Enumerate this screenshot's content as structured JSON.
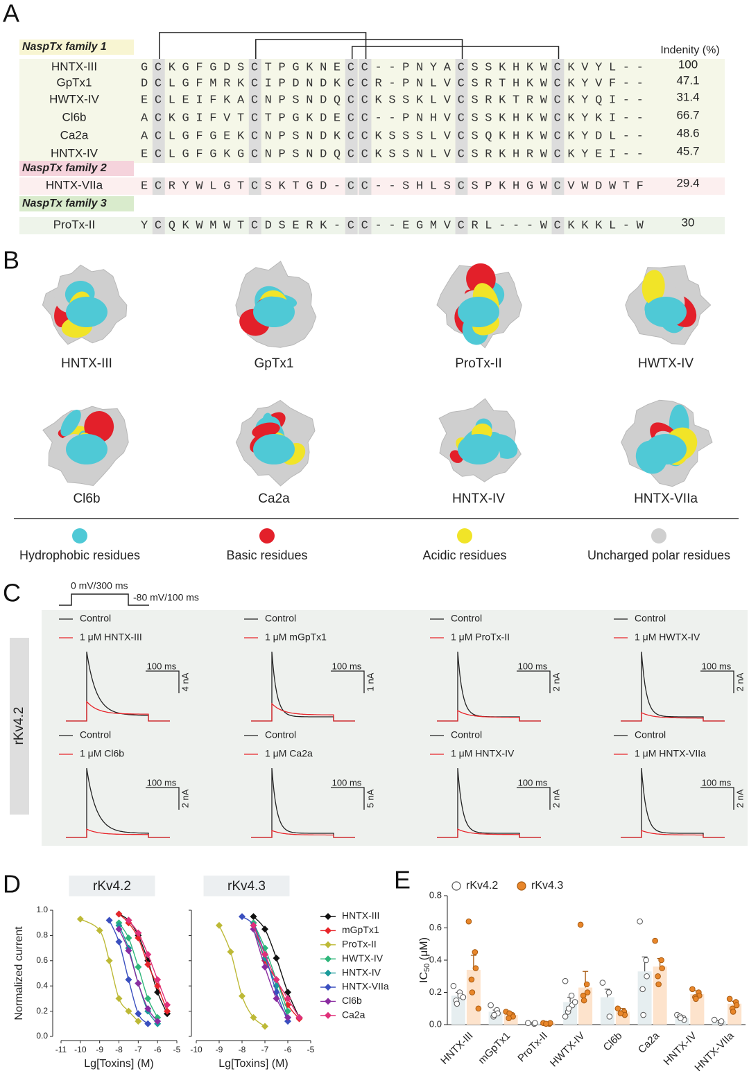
{
  "panel_a": {
    "label": "A",
    "identity_header": "Indenity (%)",
    "families": [
      {
        "name": "NaspTx family 1",
        "rows": [
          {
            "name": "HNTX-III",
            "sequence": "GCKGFGDSCTPGKNECC--PNYACSSKHKWCKVYL--",
            "identity": 100
          },
          {
            "name": "GpTx1",
            "sequence": "DCLGFMRKCIPDNDKCCR-PNLVCSRTHKWCKYVF--",
            "identity": 47.1
          },
          {
            "name": "HWTX-IV",
            "sequence": "ECLEIFKACNPSNDQCCKSSKLVCSRKTRWCKYQI--",
            "identity": 31.4
          },
          {
            "name": "Cl6b",
            "sequence": "ACKGIFVTCTPGKDECC--PNHVCSSKHKWCKYKI--",
            "identity": 66.7
          },
          {
            "name": "Ca2a",
            "sequence": "ACLGFGEKCNPSNDKCCKSSSLVCSQKHKWCKYDL--",
            "identity": 48.6
          },
          {
            "name": "HNTX-IV",
            "sequence": "ECLGFGKGCNPSNDQCCKSSNLVCSRKHRWCKYEI--",
            "identity": 45.7
          }
        ]
      },
      {
        "name": "NaspTx family 2",
        "rows": [
          {
            "name": "HNTX-VIIa",
            "sequence": "ECRYWLGTCSKTGD-CC--SHLSCSPKHGWCVWDWTF",
            "identity": 29.4
          }
        ]
      },
      {
        "name": "NaspTx family 3",
        "rows": [
          {
            "name": "ProTx-II",
            "sequence": "YCQKWMWTCDSERK-CC--EGMVCRL---WCKKKL-W",
            "identity": 30.0
          }
        ]
      }
    ]
  },
  "panel_b": {
    "label": "B",
    "structures": [
      "HNTX-III",
      "GpTx1",
      "ProTx-II",
      "HWTX-IV",
      "Cl6b",
      "Ca2a",
      "HNTX-IV",
      "HNTX-VIIa"
    ],
    "legend": [
      {
        "name": "Hydrophobic residues",
        "color": "#4fc9d6"
      },
      {
        "name": "Basic residues",
        "color": "#e3202a"
      },
      {
        "name": "Acidic residues",
        "color": "#f1e428"
      },
      {
        "name": "Uncharged polar residues",
        "color": "#cfcfcf"
      }
    ]
  },
  "panel_c": {
    "label": "C",
    "protocol": [
      "0 mV/300 ms",
      "-80 mV/100 ms"
    ],
    "channel": "rKv4.2",
    "traces": [
      {
        "control": "Control",
        "treatment": "1 μM HNTX-III",
        "time_scale": "100 ms",
        "current_scale": "4 nA"
      },
      {
        "control": "Control",
        "treatment": "1 μM mGpTx1",
        "time_scale": "100 ms",
        "current_scale": "1 nA"
      },
      {
        "control": "Control",
        "treatment": "1 μM ProTx-II",
        "time_scale": "100 ms",
        "current_scale": "2 nA"
      },
      {
        "control": "Control",
        "treatment": "1 μM HWTX-IV",
        "time_scale": "100 ms",
        "current_scale": "2 nA"
      },
      {
        "control": "Control",
        "treatment": "1 μM Cl6b",
        "time_scale": "100 ms",
        "current_scale": "2 nA"
      },
      {
        "control": "Control",
        "treatment": "1 μM Ca2a",
        "time_scale": "100 ms",
        "current_scale": "5 nA"
      },
      {
        "control": "Control",
        "treatment": "1 μM HNTX-IV",
        "time_scale": "100 ms",
        "current_scale": "2 nA"
      },
      {
        "control": "Control",
        "treatment": "1 μM HNTX-VIIa",
        "time_scale": "100 ms",
        "current_scale": "2 nA"
      }
    ]
  },
  "panel_d_label": "D",
  "panel_e_label": "E",
  "chart_data": [
    {
      "type": "line",
      "title": "rKv4.2",
      "xlabel": "Lg[Toxins] (M)",
      "ylabel": "Normalized current",
      "xlim": [
        -11,
        -5
      ],
      "xticks": [
        -11,
        -10,
        -9,
        -8,
        -7,
        -6,
        -5
      ],
      "ylim": [
        0,
        1
      ],
      "yticks": [
        {
          "value": 0,
          "label": "0.0"
        },
        0.2,
        0.4,
        0.6,
        0.8,
        {
          "value": 1,
          "label": "1.0"
        }
      ],
      "marker": "diamond",
      "series": [
        {
          "name": "HNTX-III",
          "color": "#111111",
          "x": [
            -8,
            -7.5,
            -7,
            -6.5,
            -6,
            -5.5
          ],
          "values": [
            0.97,
            0.92,
            0.8,
            0.6,
            0.35,
            0.18
          ]
        },
        {
          "name": "mGpTx1",
          "color": "#e8252a",
          "x": [
            -8,
            -7.5,
            -7,
            -6.5,
            -6,
            -5.5
          ],
          "values": [
            0.97,
            0.9,
            0.78,
            0.57,
            0.4,
            0.2
          ]
        },
        {
          "name": "ProTx-II",
          "color": "#bdb936",
          "x": [
            -10,
            -9,
            -8.5,
            -8,
            -7.5,
            -7
          ],
          "values": [
            0.93,
            0.84,
            0.6,
            0.3,
            0.2,
            0.12
          ]
        },
        {
          "name": "HWTX-IV",
          "color": "#2db67a",
          "x": [
            -8,
            -7.5,
            -7,
            -6.5,
            -6
          ],
          "values": [
            0.9,
            0.78,
            0.55,
            0.3,
            0.15
          ]
        },
        {
          "name": "HNTX-IV",
          "color": "#1a9a9a",
          "x": [
            -8,
            -7.5,
            -7,
            -6.5,
            -6
          ],
          "values": [
            0.88,
            0.7,
            0.42,
            0.2,
            0.1
          ]
        },
        {
          "name": "HNTX-VIIa",
          "color": "#3a4fbf",
          "x": [
            -8.5,
            -8,
            -7.5,
            -7,
            -6.5
          ],
          "values": [
            0.92,
            0.75,
            0.45,
            0.18,
            0.1
          ]
        },
        {
          "name": "Cl6b",
          "color": "#8a2ba0",
          "x": [
            -8,
            -7.5,
            -7,
            -6.5,
            -6
          ],
          "values": [
            0.85,
            0.68,
            0.42,
            0.22,
            0.12
          ]
        },
        {
          "name": "Ca2a",
          "color": "#e0307a",
          "x": [
            -7.5,
            -7,
            -6.5,
            -6,
            -5.5
          ],
          "values": [
            0.92,
            0.82,
            0.65,
            0.45,
            0.25
          ]
        }
      ]
    },
    {
      "type": "line",
      "title": "rKv4.3",
      "xlabel": "Lg[Toxins] (M)",
      "xlim": [
        -10,
        -5
      ],
      "xticks": [
        -10,
        -9,
        -8,
        -7,
        -6,
        -5
      ],
      "ylim": [
        0,
        1
      ],
      "yticks": [
        0,
        0.2,
        0.4,
        0.6,
        0.8,
        1
      ],
      "marker": "diamond",
      "legend": "outside right",
      "series": [
        {
          "name": "HNTX-III",
          "color": "#111111",
          "x": [
            -7.5,
            -7,
            -6.5,
            -6,
            -5.5
          ],
          "values": [
            0.95,
            0.85,
            0.62,
            0.35,
            0.15
          ]
        },
        {
          "name": "mGpTx1",
          "color": "#e8252a",
          "x": [
            -7.5,
            -7,
            -6.5,
            -6,
            -5.5
          ],
          "values": [
            0.9,
            0.6,
            0.45,
            0.25,
            0.14
          ]
        },
        {
          "name": "ProTx-II",
          "color": "#bdb936",
          "x": [
            -9,
            -8.5,
            -8,
            -7.5,
            -7
          ],
          "values": [
            0.88,
            0.67,
            0.32,
            0.15,
            0.08
          ]
        },
        {
          "name": "HWTX-IV",
          "color": "#2db67a",
          "x": [
            -7.5,
            -7,
            -6.5,
            -6
          ],
          "values": [
            0.9,
            0.7,
            0.45,
            0.2
          ]
        },
        {
          "name": "HNTX-IV",
          "color": "#1a9a9a",
          "x": [
            -7.5,
            -7,
            -6.5,
            -6
          ],
          "values": [
            0.85,
            0.62,
            0.4,
            0.15
          ]
        },
        {
          "name": "HNTX-VIIa",
          "color": "#3a4fbf",
          "x": [
            -8,
            -7.5,
            -7,
            -6.5,
            -6
          ],
          "values": [
            0.95,
            0.88,
            0.65,
            0.35,
            0.12
          ]
        },
        {
          "name": "Cl6b",
          "color": "#8a2ba0",
          "x": [
            -7.5,
            -7,
            -6.5,
            -6
          ],
          "values": [
            0.85,
            0.55,
            0.3,
            0.15
          ]
        },
        {
          "name": "Ca2a",
          "color": "#e0307a",
          "x": [
            -7.5,
            -7,
            -6.5,
            -6,
            -5.5
          ],
          "values": [
            0.88,
            0.65,
            0.45,
            0.3,
            0.15
          ]
        }
      ]
    },
    {
      "type": "bar",
      "ylabel": {
        "text": "IC",
        "subscript": "50",
        "unit": " (μM)"
      },
      "categories": [
        "HNTX-III",
        "mGpTx1",
        "ProTx-II",
        "HWTX-IV",
        "Cl6b",
        "Ca2a",
        "HNTX-IV",
        "HNTX-VIIa"
      ],
      "ylim": [
        0,
        0.8
      ],
      "yticks": [
        {
          "value": 0,
          "label": "0.0"
        },
        0.2,
        0.4,
        0.6,
        0.8
      ],
      "legend": "top",
      "series": [
        {
          "name": "rKv4.2",
          "color": "#ffffff",
          "edge_color": "#555555",
          "bar_color": "#e6eef0",
          "values": [
            0.18,
            0.08,
            0.01,
            0.14,
            0.17,
            0.33,
            0.04,
            0.02
          ],
          "errors": [
            0.02,
            0.01,
            0.002,
            0.03,
            0.05,
            0.09,
            0.01,
            0.005
          ],
          "points": [
            [
              0.24,
              0.2,
              0.18,
              0.15,
              0.13,
              0.17
            ],
            [
              0.12,
              0.09,
              0.07,
              0.05,
              0.06
            ],
            [
              0.01,
              0.005,
              0.01
            ],
            [
              0.27,
              0.18,
              0.12,
              0.08,
              0.1,
              0.14,
              0.05
            ],
            [
              0.26,
              0.2,
              0.05
            ],
            [
              0.64,
              0.4,
              0.3,
              0.22,
              0.06
            ],
            [
              0.06,
              0.04,
              0.03,
              0.05,
              0.04
            ],
            [
              0.03,
              0.01,
              0.02
            ]
          ]
        },
        {
          "name": "rKv4.3",
          "color": "#e8862a",
          "edge_color": "#a85a10",
          "bar_color": "#fde3cc",
          "values": [
            0.34,
            0.06,
            0.01,
            0.23,
            0.08,
            0.36,
            0.19,
            0.13
          ],
          "errors": [
            0.09,
            0.01,
            0.002,
            0.1,
            0.02,
            0.05,
            0.02,
            0.015
          ],
          "points": [
            [
              0.64,
              0.45,
              0.35,
              0.28,
              0.2,
              0.1
            ],
            [
              0.08,
              0.06,
              0.05,
              0.04,
              0.07
            ],
            [
              0.01,
              0.005,
              0.01,
              0.005
            ],
            [
              0.62,
              0.25,
              0.2,
              0.18,
              0.15
            ],
            [
              0.1,
              0.08,
              0.06,
              0.07
            ],
            [
              0.52,
              0.4,
              0.35,
              0.3,
              0.25
            ],
            [
              0.22,
              0.2,
              0.18,
              0.17,
              0.16
            ],
            [
              0.16,
              0.14,
              0.12,
              0.1,
              0.08
            ]
          ]
        }
      ]
    }
  ]
}
